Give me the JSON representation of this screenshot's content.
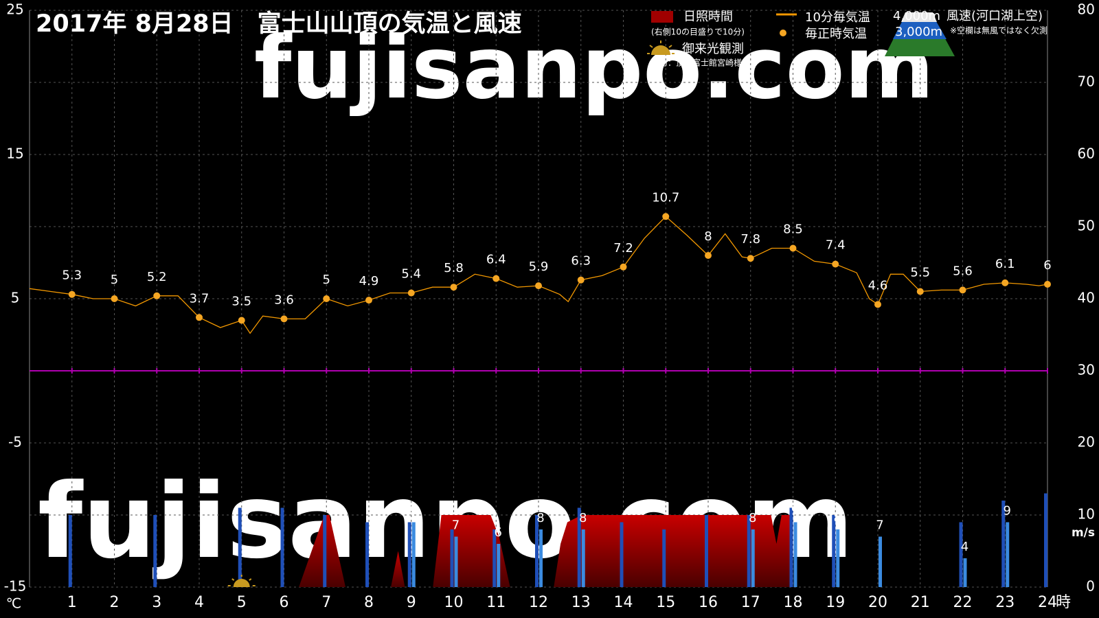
{
  "chart_data": {
    "type": "combo",
    "title": "2017年  8月28日　富士山山頂の気温と風速",
    "watermark": "fujisanpo.com",
    "y_unit": "℃",
    "x_unit": "時",
    "y2_unit": "m/s",
    "sunshine_note": "(右側10の目盛りで10分)",
    "sunrise_label": "御来光観測",
    "credit": "協力：頂上富士館宮崎様",
    "wind_label": "風速(河口湖上空)",
    "missing_note": "※空欄は無風ではなく欠測",
    "sunrise_observation": {
      "x": 5
    },
    "xlim": [
      0,
      24
    ],
    "xticks": [
      1,
      2,
      3,
      4,
      5,
      6,
      7,
      8,
      9,
      10,
      11,
      12,
      13,
      14,
      15,
      16,
      17,
      18,
      19,
      20,
      21,
      22,
      23,
      24
    ],
    "ylim": [
      -15,
      25
    ],
    "yticks": [
      -15,
      -5,
      5,
      15,
      25
    ],
    "y2lim": [
      0,
      80
    ],
    "y2ticks": [
      0,
      10,
      20,
      30,
      40,
      50,
      60,
      70,
      80
    ],
    "grid": true,
    "zero_line": 0,
    "zero_line_color": "#b000b0",
    "series": [
      {
        "name": "10分毎気温",
        "type": "line",
        "color": "#f39800",
        "x": [
          0,
          0.5,
          1,
          1.5,
          2,
          2.5,
          3,
          3.5,
          4,
          4.5,
          5,
          5.2,
          5.5,
          6,
          6.5,
          7,
          7.5,
          8,
          8.5,
          9,
          9.5,
          10,
          10.5,
          11,
          11.5,
          12,
          12.5,
          12.7,
          13,
          13.5,
          14,
          14.5,
          15,
          15.5,
          16,
          16.4,
          16.8,
          17,
          17.5,
          18,
          18.5,
          19,
          19.5,
          19.8,
          20,
          20.3,
          20.6,
          21,
          21.5,
          22,
          22.5,
          23,
          23.5,
          23.8,
          24
        ],
        "values": [
          5.7,
          5.5,
          5.3,
          5.0,
          5,
          4.5,
          5.2,
          5.2,
          3.7,
          3.0,
          3.5,
          2.6,
          3.8,
          3.6,
          3.6,
          5,
          4.5,
          4.9,
          5.4,
          5.4,
          5.8,
          5.8,
          6.7,
          6.4,
          5.8,
          5.9,
          5.3,
          4.8,
          6.3,
          6.6,
          7.2,
          9.2,
          10.7,
          9.4,
          8,
          9.5,
          7.9,
          7.8,
          8.5,
          8.5,
          7.6,
          7.4,
          6.8,
          5.0,
          4.6,
          6.7,
          6.7,
          5.5,
          5.6,
          5.6,
          6.0,
          6.1,
          6.0,
          5.9,
          6
        ]
      },
      {
        "name": "毎正時気温",
        "type": "scatter",
        "color": "#f5a623",
        "x": [
          1,
          2,
          3,
          4,
          5,
          6,
          7,
          8,
          9,
          10,
          11,
          12,
          13,
          14,
          15,
          16,
          17,
          18,
          19,
          20,
          21,
          22,
          23,
          24
        ],
        "values": [
          5.3,
          5,
          5.2,
          3.7,
          3.5,
          3.6,
          5,
          4.9,
          5.4,
          5.8,
          6.4,
          5.9,
          6.3,
          7.2,
          10.7,
          8,
          7.8,
          8.5,
          7.4,
          4.6,
          5.5,
          5.6,
          6.1,
          6
        ]
      },
      {
        "name": "日照時間",
        "type": "area",
        "axis": "y2",
        "color": "#c00000",
        "x": [
          6.35,
          6.95,
          7.07,
          7.45,
          null,
          8.52,
          8.69,
          8.85,
          null,
          9.51,
          9.71,
          10.87,
          11.07,
          11.33,
          null,
          12.36,
          12.52,
          12.68,
          13.02,
          17.48,
          17.61,
          17.73,
          17.94,
          17.98
        ],
        "values": [
          0,
          10,
          10,
          0,
          null,
          0,
          5,
          0,
          null,
          0,
          10,
          10,
          7,
          0,
          null,
          0,
          6,
          9,
          10,
          10,
          6,
          10,
          10,
          0
        ]
      },
      {
        "name": "4,000m",
        "type": "bar",
        "axis": "y2",
        "color": "#1f4fb8",
        "x": [
          1,
          2,
          3,
          4,
          5,
          6,
          7,
          8,
          9,
          10,
          11,
          12,
          13,
          14,
          15,
          16,
          17,
          18,
          19,
          20,
          21,
          22,
          23,
          24
        ],
        "values": [
          10,
          null,
          10,
          null,
          11,
          11,
          10,
          9,
          9,
          8,
          8,
          10,
          11,
          9,
          8,
          10,
          10,
          11,
          10,
          null,
          null,
          9,
          12,
          13
        ]
      },
      {
        "name": "3,000m",
        "type": "bar",
        "axis": "y2",
        "color": "#3b8be0",
        "labels": true,
        "x": [
          1,
          2,
          3,
          4,
          5,
          6,
          7,
          8,
          9,
          10,
          11,
          12,
          13,
          14,
          15,
          16,
          17,
          18,
          19,
          20,
          21,
          22,
          23,
          24
        ],
        "values": [
          null,
          null,
          null,
          null,
          null,
          null,
          null,
          null,
          9,
          7,
          6,
          8,
          8,
          null,
          null,
          null,
          8,
          9,
          8,
          7,
          null,
          4,
          9,
          null
        ]
      }
    ]
  }
}
